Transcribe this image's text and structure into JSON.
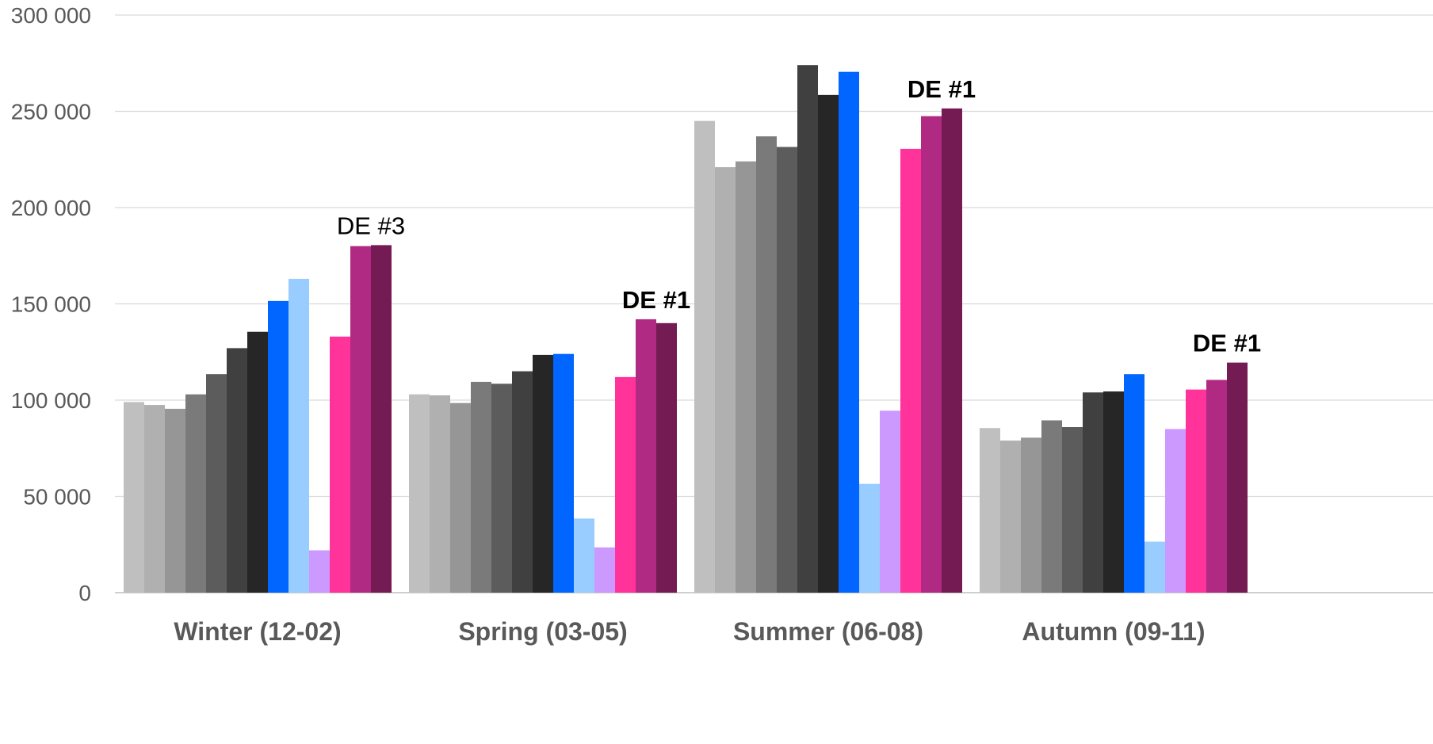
{
  "chart_data": {
    "type": "bar",
    "title": "",
    "xlabel": "",
    "ylabel": "",
    "ylim": [
      0,
      300000
    ],
    "y_ticks": [
      {
        "value": 0,
        "label": "0"
      },
      {
        "value": 50000,
        "label": "50 000"
      },
      {
        "value": 100000,
        "label": "100 000"
      },
      {
        "value": 150000,
        "label": "150 000"
      },
      {
        "value": 200000,
        "label": "200 000"
      },
      {
        "value": 250000,
        "label": "250 000"
      },
      {
        "value": 300000,
        "label": "300 000"
      }
    ],
    "grid": true,
    "legend": "none",
    "categories": [
      "Winter (12-02)",
      "Spring (03-05)",
      "Summer (06-08)",
      "Autumn (09-11)"
    ],
    "series": [
      {
        "color": "#bfbfbf",
        "values": [
          99000,
          103000,
          245000,
          85500
        ]
      },
      {
        "color": "#b0b0b0",
        "values": [
          97500,
          102500,
          221000,
          79000
        ]
      },
      {
        "color": "#969696",
        "values": [
          95500,
          98500,
          224000,
          80500
        ]
      },
      {
        "color": "#7a7a7a",
        "values": [
          103000,
          109500,
          237000,
          89500
        ]
      },
      {
        "color": "#5c5c5c",
        "values": [
          113500,
          108500,
          231500,
          86000
        ]
      },
      {
        "color": "#404040",
        "values": [
          127000,
          115000,
          274000,
          104000
        ]
      },
      {
        "color": "#262626",
        "values": [
          135500,
          123500,
          258500,
          104500
        ]
      },
      {
        "color": "#0066ff",
        "values": [
          151500,
          124000,
          270500,
          113500
        ]
      },
      {
        "color": "#99ccff",
        "values": [
          163000,
          38500,
          56500,
          26500
        ]
      },
      {
        "color": "#cc99ff",
        "values": [
          22000,
          23500,
          94500,
          85000
        ]
      },
      {
        "color": "#ff3399",
        "values": [
          133000,
          112000,
          230500,
          105500
        ]
      },
      {
        "color": "#b02a84",
        "values": [
          180000,
          142000,
          247500,
          110500
        ]
      },
      {
        "color": "#741b54",
        "values": [
          180500,
          140000,
          251500,
          119500
        ]
      }
    ],
    "annotations": [
      {
        "text": "DE #3",
        "category_index": 0,
        "bold": false
      },
      {
        "text": "DE #1",
        "category_index": 1,
        "bold": true
      },
      {
        "text": "DE #1",
        "category_index": 2,
        "bold": true
      },
      {
        "text": "DE #1",
        "category_index": 3,
        "bold": true
      }
    ]
  }
}
